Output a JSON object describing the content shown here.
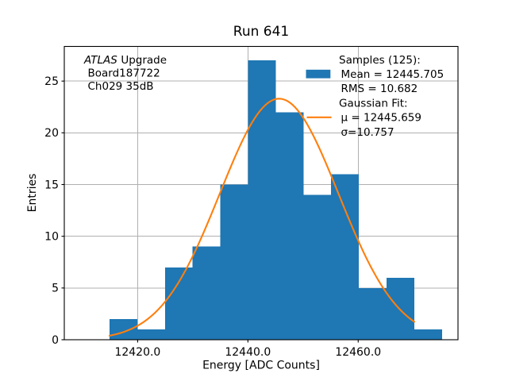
{
  "title": "Run 641",
  "annotation": {
    "line1_italic": "ATLAS",
    "line1_regular": "Upgrade",
    "line2": "Board187722",
    "line3": "Ch029 35dB"
  },
  "legend": {
    "entries": [
      {
        "label": "Samples (125):",
        "handle": "none"
      },
      {
        "label": "Mean = 12445.705",
        "handle": "patch"
      },
      {
        "label": "RMS = 10.682",
        "handle": "none"
      },
      {
        "label": "Gaussian Fit:",
        "handle": "none"
      },
      {
        "label": "μ = 12445.659",
        "handle": "line"
      },
      {
        "label": "σ=10.757",
        "handle": "none"
      }
    ]
  },
  "chart_data": {
    "type": "bar",
    "subtype": "histogram-with-gaussian-fit",
    "title": "Run 641",
    "xlabel": "Energy [ADC Counts]",
    "ylabel": "Entries",
    "bin_edges": [
      12414.9,
      12419.93,
      12424.95,
      12429.98,
      12435.0,
      12440.03,
      12445.05,
      12450.08,
      12455.1,
      12460.13,
      12465.15,
      12470.18,
      12475.2
    ],
    "counts": [
      2,
      1,
      7,
      9,
      15,
      27,
      22,
      14,
      16,
      5,
      6,
      1
    ],
    "total_samples": 125,
    "mean": 12445.705,
    "rms": 10.682,
    "gaussian_fit": {
      "mu": 12445.659,
      "sigma": 10.757,
      "amplitude": 23.3,
      "x_range": [
        12414.9,
        12470.18
      ]
    },
    "xlim": [
      12406.7,
      12478.1
    ],
    "ylim": [
      0,
      28.35
    ],
    "x_ticks": [
      {
        "value": 12420,
        "label": "12420.0"
      },
      {
        "value": 12440,
        "label": "12440.0"
      },
      {
        "value": 12460,
        "label": "12460.0"
      }
    ],
    "y_ticks": [
      {
        "value": 0,
        "label": "0"
      },
      {
        "value": 5,
        "label": "5"
      },
      {
        "value": 10,
        "label": "10"
      },
      {
        "value": 15,
        "label": "15"
      },
      {
        "value": 20,
        "label": "20"
      },
      {
        "value": 25,
        "label": "25"
      }
    ],
    "grid": true,
    "legend_position": "upper right"
  },
  "colors": {
    "histogram": "#1f77b4",
    "fit_line": "#ff7f0e",
    "grid": "#b0b0b0",
    "spine": "#000000",
    "text": "#000000",
    "background": "#ffffff"
  }
}
